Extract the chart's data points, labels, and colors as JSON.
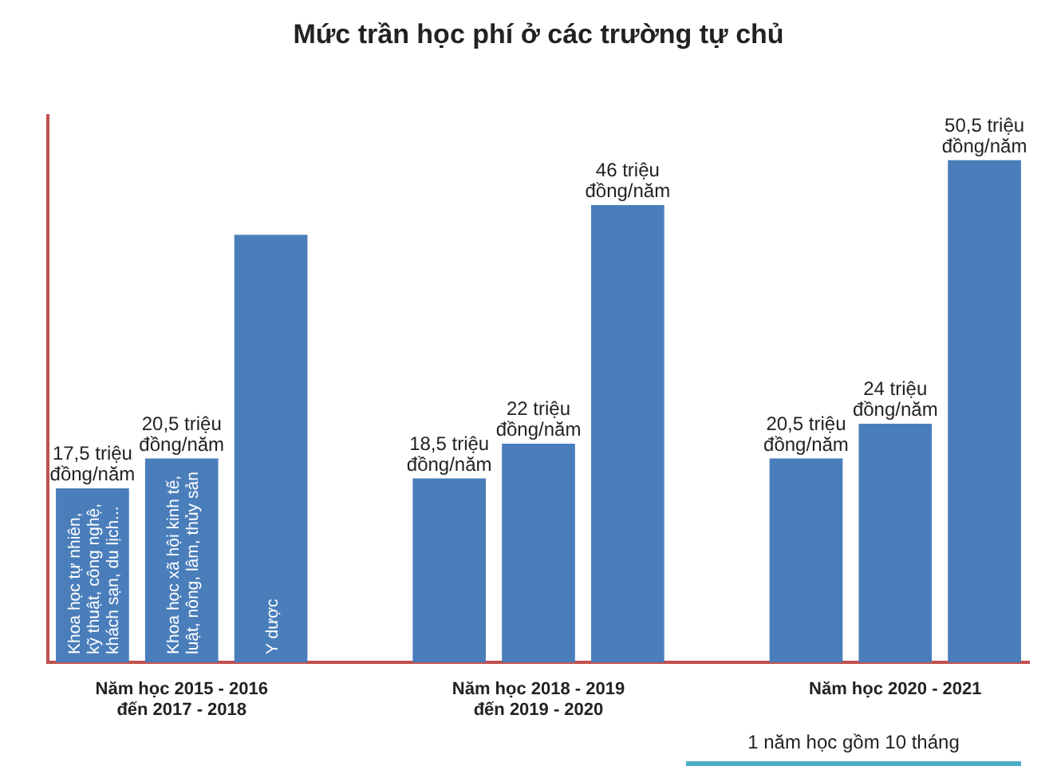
{
  "chart_data": {
    "type": "bar",
    "title": "Mức trần học phí ở các trường tự chủ",
    "categories": [
      "Khoa học tự nhiên, kỹ thuật, công nghệ, khách sạn, du lịch...",
      "Khoa học xã hội kinh tế, luật, nông, lâm, thủy sản",
      "Y dược",
      null,
      null,
      null,
      null,
      null,
      null,
      null,
      null
    ],
    "values": [
      17.5,
      20.5,
      43,
      null,
      18.5,
      22,
      46,
      null,
      20.5,
      24,
      50.5
    ],
    "value_labels": [
      "17,5 triệu đồng/năm",
      "20,5 triệu đồng/năm",
      null,
      null,
      "18,5 triệu đồng/năm",
      "22 triệu đồng/năm",
      "46 triệu đồng/năm",
      null,
      "20,5 triệu đồng/năm",
      "24 triệu đồng/năm",
      "50,5 triệu đồng/năm"
    ],
    "color": "#4a7ebb",
    "ylim": [
      0,
      55
    ],
    "annotations": [
      "Năm học 2015 - 2016 đến 2017 - 2018",
      "Năm học 2018 - 2019 đến 2019 - 2020",
      "Năm học 2020 - 2021",
      "1 năm học gồm 10 tháng"
    ],
    "grid": false,
    "legend": false
  }
}
